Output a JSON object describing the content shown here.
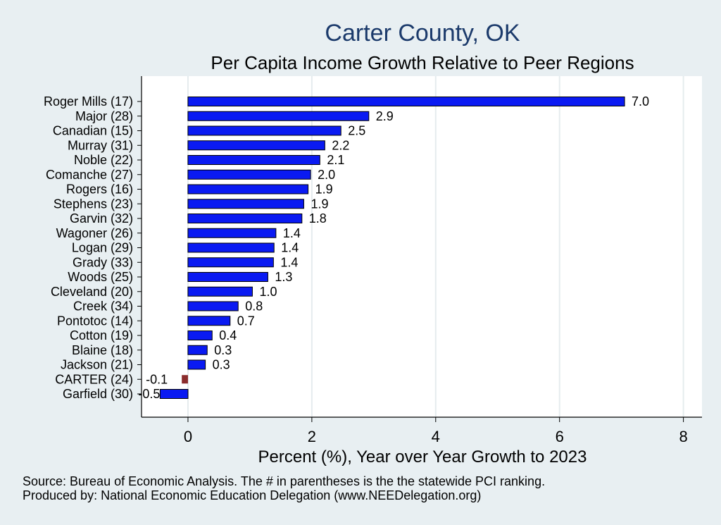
{
  "chart_data": {
    "type": "bar",
    "orientation": "horizontal",
    "title": "Carter County, OK",
    "subtitle": "Per Capita Income Growth Relative to Peer Regions",
    "xlabel": "Percent (%), Year over Year Growth to 2023",
    "ylabel": "",
    "xlim": [
      -0.75,
      8.3
    ],
    "xticks": [
      0,
      2,
      4,
      6,
      8
    ],
    "grid": true,
    "categories": [
      "Roger Mills (17)",
      "Major (28)",
      "Canadian (15)",
      "Murray (31)",
      "Noble (22)",
      "Comanche (27)",
      "Rogers (16)",
      "Stephens (23)",
      "Garvin (32)",
      "Wagoner (26)",
      "Logan (29)",
      "Grady (33)",
      "Woods (25)",
      "Cleveland (20)",
      "Creek (34)",
      "Pontotoc (14)",
      "Cotton (19)",
      "Blaine (18)",
      "Jackson (21)",
      "CARTER (24)",
      "Garfield (30)"
    ],
    "values": [
      7.05,
      2.92,
      2.47,
      2.21,
      2.13,
      1.98,
      1.94,
      1.87,
      1.84,
      1.42,
      1.39,
      1.38,
      1.29,
      1.04,
      0.81,
      0.68,
      0.39,
      0.31,
      0.28,
      -0.1,
      -0.45
    ],
    "value_labels": [
      "7.0",
      "2.9",
      "2.5",
      "2.2",
      "2.1",
      "2.0",
      "1.9",
      "1.9",
      "1.8",
      "1.4",
      "1.4",
      "1.4",
      "1.3",
      "1.0",
      "0.8",
      "0.7",
      "0.4",
      "0.3",
      "0.3",
      "-0.1",
      "-0.5"
    ],
    "highlight_index": 19,
    "colors": {
      "bar": "#0a1af2",
      "highlight": "#8b2c2c",
      "grid": "#e5ecee",
      "plot_bg": "#ffffff",
      "page_bg": "#e8eff2",
      "title": "#1b3a6b"
    }
  },
  "footer": {
    "source": "Source: Bureau of Economic Analysis. The # in parentheses is the the statewide PCI ranking.",
    "produced": "Produced by: National Economic Education Delegation (www.NEEDelegation.org)"
  }
}
